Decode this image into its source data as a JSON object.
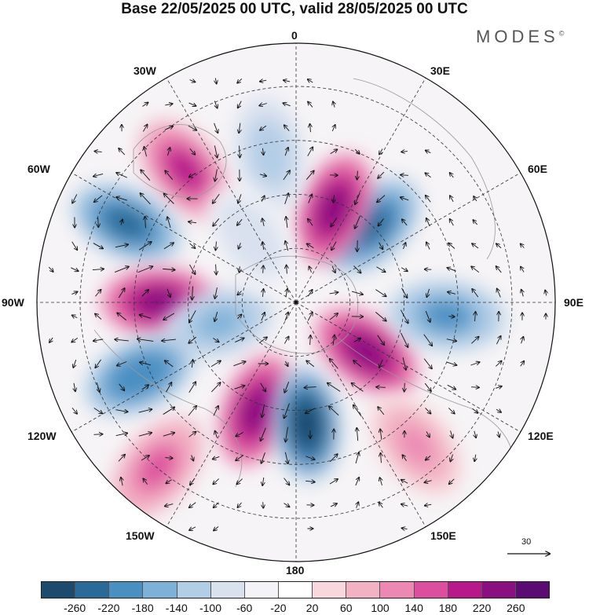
{
  "title": "Base 22/05/2025 00 UTC, valid 28/05/2025 00 UTC",
  "logo": {
    "text": "MODES",
    "mark": "©"
  },
  "longitude_labels": [
    {
      "id": "lon-0",
      "text": "0"
    },
    {
      "id": "lon-30e",
      "text": "30E"
    },
    {
      "id": "lon-60e",
      "text": "60E"
    },
    {
      "id": "lon-90e",
      "text": "90E"
    },
    {
      "id": "lon-120e",
      "text": "120E"
    },
    {
      "id": "lon-150e",
      "text": "150E"
    },
    {
      "id": "lon-180",
      "text": "180"
    },
    {
      "id": "lon-150w",
      "text": "150W"
    },
    {
      "id": "lon-120w",
      "text": "120W"
    },
    {
      "id": "lon-90w",
      "text": "90W"
    },
    {
      "id": "lon-60w",
      "text": "60W"
    },
    {
      "id": "lon-30w",
      "text": "30W"
    }
  ],
  "reference_vector": {
    "value": "30"
  },
  "colorbar": {
    "colors": [
      "#1e4a6e",
      "#2a6a98",
      "#4a8fc2",
      "#7eb1d8",
      "#b2cde6",
      "#d9e1ef",
      "#f4f4f8",
      "#ffffff",
      "#f8d8dc",
      "#f2b2c4",
      "#ec88b2",
      "#dc4f9e",
      "#b8198a",
      "#8a0f80",
      "#5a0c73"
    ],
    "ticks": [
      "-260",
      "-220",
      "-180",
      "-140",
      "-100",
      "-60",
      "-20",
      "20",
      "60",
      "100",
      "140",
      "180",
      "220",
      "260"
    ]
  },
  "anomaly_field": {
    "units": "",
    "features": [
      {
        "name": "pos-north-atlantic",
        "lon": -40,
        "colat": 48,
        "value": 180
      },
      {
        "name": "neg-greenland",
        "lon": -65,
        "colat": 52,
        "value": -240
      },
      {
        "name": "pos-canada",
        "lon": -90,
        "colat": 38,
        "value": 250
      },
      {
        "name": "neg-hudson",
        "lon": -105,
        "colat": 22,
        "value": -150
      },
      {
        "name": "neg-pacific-ne",
        "lon": -115,
        "colat": 48,
        "value": -220
      },
      {
        "name": "pos-pacific-n",
        "lon": -160,
        "colat": 32,
        "value": 240
      },
      {
        "name": "pos-pacific-sw",
        "lon": -140,
        "colat": 60,
        "value": 140
      },
      {
        "name": "neg-bering",
        "lon": 175,
        "colat": 34,
        "value": -270
      },
      {
        "name": "pos-siberia-e",
        "lon": 125,
        "colat": 24,
        "value": 220
      },
      {
        "name": "neg-lake-baikal",
        "lon": 95,
        "colat": 42,
        "value": -200
      },
      {
        "name": "neg-ural",
        "lon": 45,
        "colat": 30,
        "value": -230
      },
      {
        "name": "pos-scandinavia",
        "lon": 22,
        "colat": 28,
        "value": 220
      },
      {
        "name": "neg-north-sea",
        "lon": -10,
        "colat": 42,
        "value": -140
      },
      {
        "name": "neg-iceland",
        "lon": -35,
        "colat": 22,
        "value": -100
      },
      {
        "name": "pos-asia-se",
        "lon": 140,
        "colat": 52,
        "value": 100
      }
    ]
  }
}
